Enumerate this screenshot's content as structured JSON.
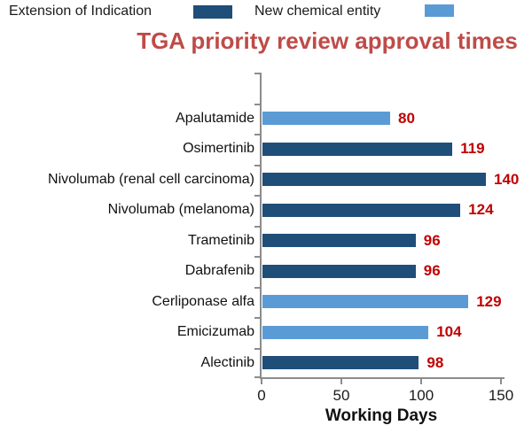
{
  "title": "TGA priority review approval times",
  "legend": {
    "items": [
      {
        "key": "eoi",
        "label": "Extension of Indication",
        "color": "#1F4E79"
      },
      {
        "key": "nce",
        "label": "New chemical entity",
        "color": "#5B9BD5"
      }
    ]
  },
  "chart_data": {
    "type": "bar",
    "orientation": "horizontal",
    "title": "TGA priority review approval times",
    "categories": [
      "Apalutamide",
      "Osimertinib",
      "Nivolumab (renal cell carcinoma)",
      "Nivolumab (melanoma)",
      "Trametinib",
      "Dabrafenib",
      "Cerliponase alfa",
      "Emicizumab",
      "Alectinib"
    ],
    "values": [
      80,
      119,
      140,
      124,
      96,
      96,
      129,
      104,
      98
    ],
    "series_by_bar": [
      "nce",
      "eoi",
      "eoi",
      "eoi",
      "eoi",
      "eoi",
      "nce",
      "nce",
      "eoi"
    ],
    "series": [
      {
        "name": "Extension of Indication",
        "color": "#1F4E79"
      },
      {
        "name": "New chemical entity",
        "color": "#5B9BD5"
      }
    ],
    "xlabel": "Working Days",
    "xticks": [
      0,
      50,
      100,
      150
    ],
    "xlim": [
      0,
      150
    ],
    "grid": false,
    "legend_position": "top",
    "value_labels_shown": true
  },
  "colors": {
    "title": "#BE4B48",
    "value_label": "#C00000",
    "axis": "#8C8C8C",
    "dark_series": "#1F4E79",
    "light_series": "#5B9BD5"
  }
}
